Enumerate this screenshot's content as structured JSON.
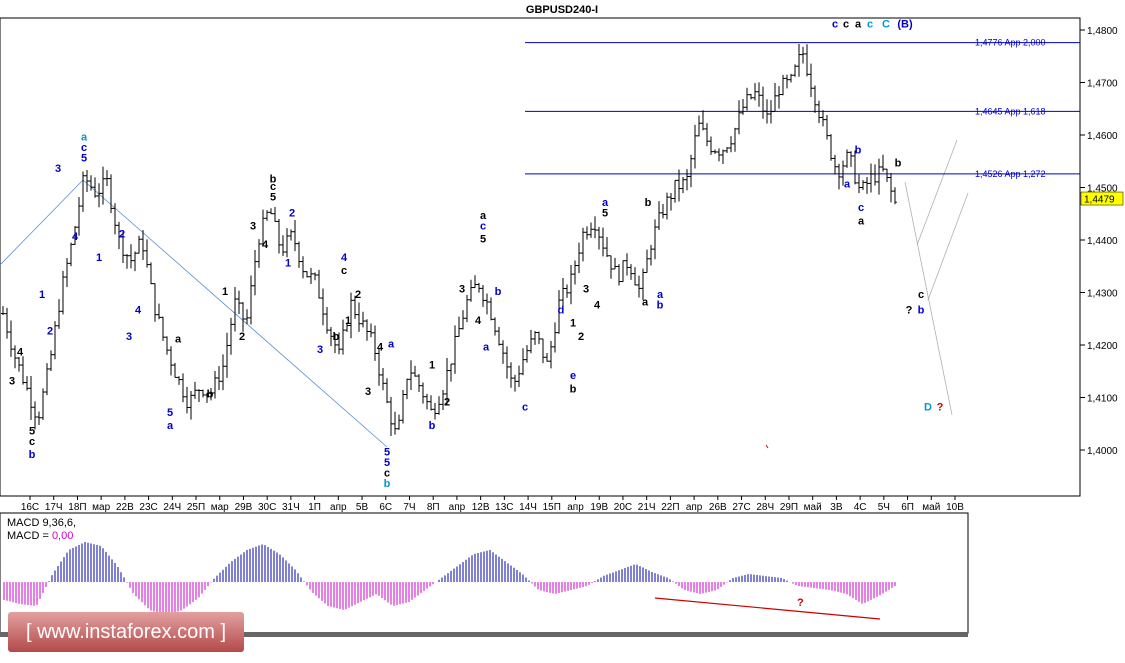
{
  "chart_data": {
    "type": "ohlc",
    "title": "GBPUSD240-I",
    "y_range": [
      1.393,
      1.482
    ],
    "y_ticks": [
      "1,4800",
      "1,4700",
      "1,4600",
      "1,4500",
      "1,4400",
      "1,4300",
      "1,4200",
      "1,4100",
      "1,4000"
    ],
    "y_tick_values": [
      1.48,
      1.47,
      1.46,
      1.45,
      1.44,
      1.43,
      1.42,
      1.41,
      1.4
    ],
    "current_price_label": "1,4479",
    "current_price": 1.4479,
    "x_labels": [
      "16С",
      "17Ч",
      "18П",
      "мар",
      "22В",
      "23С",
      "24Ч",
      "25П",
      "мар",
      "29В",
      "30С",
      "31Ч",
      "1П",
      "апр",
      "5В",
      "6С",
      "7Ч",
      "8П",
      "апр",
      "12В",
      "13С",
      "14Ч",
      "15П",
      "апр",
      "19В",
      "20С",
      "21Ч",
      "22П",
      "апр",
      "26В",
      "27С",
      "28Ч",
      "29П",
      "май",
      "3В",
      "4С",
      "5Ч",
      "6П",
      "май",
      "10В"
    ],
    "levels": [
      {
        "price": 1.4776,
        "label": "1,4776 App 2,000"
      },
      {
        "price": 1.4645,
        "label": "1,4645 App 1,618"
      },
      {
        "price": 1.4526,
        "label": "1,4526 App 1,272"
      }
    ],
    "price_path": [
      1.426,
      1.418,
      1.412,
      1.406,
      1.416,
      1.43,
      1.44,
      1.452,
      1.449,
      1.451,
      1.44,
      1.436,
      1.44,
      1.428,
      1.42,
      1.414,
      1.409,
      1.412,
      1.411,
      1.416,
      1.428,
      1.424,
      1.44,
      1.446,
      1.438,
      1.441,
      1.434,
      1.432,
      1.424,
      1.418,
      1.428,
      1.424,
      1.42,
      1.41,
      1.402,
      1.416,
      1.412,
      1.407,
      1.412,
      1.42,
      1.428,
      1.432,
      1.427,
      1.42,
      1.412,
      1.418,
      1.422,
      1.416,
      1.428,
      1.432,
      1.441,
      1.444,
      1.438,
      1.433,
      1.436,
      1.43,
      1.44,
      1.446,
      1.45,
      1.451,
      1.462,
      1.458,
      1.457,
      1.46,
      1.466,
      1.468,
      1.463,
      1.469,
      1.47,
      1.476,
      1.468,
      1.46,
      1.453,
      1.456,
      1.449,
      1.452,
      1.453,
      1.447
    ],
    "macd_label": "MACD 9,36,6,",
    "macd_value_prefix": "MACD = ",
    "macd_value": "0,00",
    "macd_values": [
      -0.45,
      -0.55,
      -0.6,
      0.2,
      0.8,
      1.0,
      0.9,
      0.4,
      -0.3,
      -0.7,
      -0.85,
      -0.7,
      -0.4,
      0.1,
      0.5,
      0.8,
      0.95,
      0.7,
      0.3,
      -0.25,
      -0.6,
      -0.7,
      -0.5,
      -0.3,
      -0.6,
      -0.5,
      -0.2,
      0.1,
      0.4,
      0.7,
      0.8,
      0.5,
      0.2,
      -0.2,
      -0.3,
      -0.2,
      -0.1,
      0.15,
      0.3,
      0.45,
      0.25,
      0.1,
      -0.2,
      -0.3,
      -0.2,
      0.1,
      0.2,
      0.15,
      0.1,
      -0.1,
      -0.15,
      -0.2,
      -0.3,
      -0.55,
      -0.35,
      -0.1
    ],
    "wave_labels": [
      {
        "t": "3",
        "x": 12,
        "p": 1.4125,
        "c": "#000000"
      },
      {
        "t": "4",
        "x": 20,
        "p": 1.418,
        "c": "#000000"
      },
      {
        "t": "5",
        "x": 32,
        "p": 1.403,
        "c": "#000000"
      },
      {
        "t": "c",
        "x": 32,
        "p": 1.401,
        "c": "#000000"
      },
      {
        "t": "b",
        "x": 32,
        "p": 1.3985,
        "c": "#0000cc"
      },
      {
        "t": "1",
        "x": 42,
        "p": 1.429,
        "c": "#0000cc"
      },
      {
        "t": "2",
        "x": 50,
        "p": 1.422,
        "c": "#0000cc"
      },
      {
        "t": "3",
        "x": 58,
        "p": 1.453,
        "c": "#0000cc"
      },
      {
        "t": "4",
        "x": 75,
        "p": 1.44,
        "c": "#0000cc"
      },
      {
        "t": "a",
        "x": 84,
        "p": 1.459,
        "c": "#0099cc"
      },
      {
        "t": "c",
        "x": 84,
        "p": 1.457,
        "c": "#0000cc"
      },
      {
        "t": "5",
        "x": 84,
        "p": 1.455,
        "c": "#0000cc"
      },
      {
        "t": "1",
        "x": 99,
        "p": 1.436,
        "c": "#0000cc"
      },
      {
        "t": "2",
        "x": 122,
        "p": 1.4405,
        "c": "#0000cc"
      },
      {
        "t": "3",
        "x": 129,
        "p": 1.421,
        "c": "#0000cc"
      },
      {
        "t": "4",
        "x": 138,
        "p": 1.426,
        "c": "#0000cc"
      },
      {
        "t": "a",
        "x": 178,
        "p": 1.4205,
        "c": "#000000"
      },
      {
        "t": "b",
        "x": 210,
        "p": 1.41,
        "c": "#000000"
      },
      {
        "t": "5",
        "x": 170,
        "p": 1.4065,
        "c": "#0000cc"
      },
      {
        "t": "a",
        "x": 170,
        "p": 1.404,
        "c": "#0000cc"
      },
      {
        "t": "1",
        "x": 225,
        "p": 1.4295,
        "c": "#000000"
      },
      {
        "t": "2",
        "x": 242,
        "p": 1.421,
        "c": "#000000"
      },
      {
        "t": "3",
        "x": 253,
        "p": 1.442,
        "c": "#000000"
      },
      {
        "t": "4",
        "x": 265,
        "p": 1.4385,
        "c": "#000000"
      },
      {
        "t": "b",
        "x": 273,
        "p": 1.451,
        "c": "#000000"
      },
      {
        "t": "c",
        "x": 273,
        "p": 1.4495,
        "c": "#000000"
      },
      {
        "t": "5",
        "x": 273,
        "p": 1.4475,
        "c": "#000000"
      },
      {
        "t": "2",
        "x": 292,
        "p": 1.4445,
        "c": "#0000cc"
      },
      {
        "t": "1",
        "x": 288,
        "p": 1.435,
        "c": "#0000cc"
      },
      {
        "t": "4",
        "x": 344,
        "p": 1.436,
        "c": "#0000cc"
      },
      {
        "t": "c",
        "x": 344,
        "p": 1.4335,
        "c": "#000000"
      },
      {
        "t": "3",
        "x": 320,
        "p": 1.4185,
        "c": "#0000cc"
      },
      {
        "t": "b",
        "x": 336,
        "p": 1.421,
        "c": "#000000"
      },
      {
        "t": "1",
        "x": 348,
        "p": 1.424,
        "c": "#000000"
      },
      {
        "t": "2",
        "x": 358,
        "p": 1.429,
        "c": "#000000"
      },
      {
        "t": "3",
        "x": 368,
        "p": 1.4105,
        "c": "#000000"
      },
      {
        "t": "4",
        "x": 380,
        "p": 1.419,
        "c": "#000000"
      },
      {
        "t": "a",
        "x": 391,
        "p": 1.4195,
        "c": "#0000cc"
      },
      {
        "t": "5",
        "x": 387,
        "p": 1.399,
        "c": "#0000cc"
      },
      {
        "t": "5",
        "x": 387,
        "p": 1.397,
        "c": "#0000cc"
      },
      {
        "t": "c",
        "x": 387,
        "p": 1.395,
        "c": "#000000"
      },
      {
        "t": "b",
        "x": 387,
        "p": 1.393,
        "c": "#0099cc"
      },
      {
        "t": "1",
        "x": 432,
        "p": 1.4155,
        "c": "#000000"
      },
      {
        "t": "2",
        "x": 447,
        "p": 1.4085,
        "c": "#000000"
      },
      {
        "t": "b",
        "x": 432,
        "p": 1.404,
        "c": "#0000cc"
      },
      {
        "t": "3",
        "x": 462,
        "p": 1.43,
        "c": "#000000"
      },
      {
        "t": "4",
        "x": 478,
        "p": 1.424,
        "c": "#000000"
      },
      {
        "t": "a",
        "x": 486,
        "p": 1.419,
        "c": "#0000cc"
      },
      {
        "t": "b",
        "x": 498,
        "p": 1.4295,
        "c": "#0000cc"
      },
      {
        "t": "a",
        "x": 483,
        "p": 1.444,
        "c": "#000000"
      },
      {
        "t": "c",
        "x": 483,
        "p": 1.442,
        "c": "#0000cc"
      },
      {
        "t": "5",
        "x": 483,
        "p": 1.4395,
        "c": "#000000"
      },
      {
        "t": "c",
        "x": 525,
        "p": 1.4075,
        "c": "#0000cc"
      },
      {
        "t": "d",
        "x": 561,
        "p": 1.426,
        "c": "#0000cc"
      },
      {
        "t": "1",
        "x": 573,
        "p": 1.4235,
        "c": "#000000"
      },
      {
        "t": "2",
        "x": 581,
        "p": 1.421,
        "c": "#000000"
      },
      {
        "t": "e",
        "x": 573,
        "p": 1.4135,
        "c": "#0000cc"
      },
      {
        "t": "b",
        "x": 573,
        "p": 1.411,
        "c": "#000000"
      },
      {
        "t": "3",
        "x": 586,
        "p": 1.43,
        "c": "#000000"
      },
      {
        "t": "4",
        "x": 597,
        "p": 1.427,
        "c": "#000000"
      },
      {
        "t": "a",
        "x": 605,
        "p": 1.4465,
        "c": "#0000cc"
      },
      {
        "t": "5",
        "x": 605,
        "p": 1.4445,
        "c": "#000000"
      },
      {
        "t": "b",
        "x": 648,
        "p": 1.4465,
        "c": "#000000"
      },
      {
        "t": "a",
        "x": 645,
        "p": 1.4275,
        "c": "#000000"
      },
      {
        "t": "a",
        "x": 660,
        "p": 1.429,
        "c": "#0000cc"
      },
      {
        "t": "b",
        "x": 660,
        "p": 1.427,
        "c": "#0000cc"
      },
      {
        "t": "c",
        "x": 835,
        "p": 1.4805,
        "c": "#0000cc"
      },
      {
        "t": "c",
        "x": 846,
        "p": 1.4805,
        "c": "#000000"
      },
      {
        "t": "a",
        "x": 858,
        "p": 1.4805,
        "c": "#000000"
      },
      {
        "t": "c",
        "x": 870,
        "p": 1.4805,
        "c": "#0099cc"
      },
      {
        "t": "C",
        "x": 886,
        "p": 1.4805,
        "c": "#0099cc"
      },
      {
        "t": "(B)",
        "x": 905,
        "p": 1.4805,
        "c": "#0000cc"
      },
      {
        "t": "b",
        "x": 858,
        "p": 1.4565,
        "c": "#0000cc"
      },
      {
        "t": "a",
        "x": 847,
        "p": 1.45,
        "c": "#0000cc"
      },
      {
        "t": "c",
        "x": 861,
        "p": 1.4455,
        "c": "#0000cc"
      },
      {
        "t": "a",
        "x": 861,
        "p": 1.443,
        "c": "#000000"
      },
      {
        "t": "b",
        "x": 898,
        "p": 1.454,
        "c": "#000000"
      },
      {
        "t": "c",
        "x": 921,
        "p": 1.429,
        "c": "#000000"
      },
      {
        "t": "?",
        "x": 909,
        "p": 1.426,
        "c": "#000000"
      },
      {
        "t": "b",
        "x": 921,
        "p": 1.426,
        "c": "#0000cc"
      },
      {
        "t": "D",
        "x": 928,
        "p": 1.4075,
        "c": "#0099cc"
      },
      {
        "t": "?",
        "x": 940,
        "p": 1.4075,
        "c": "#cc0000"
      }
    ]
  },
  "watermark": "[ www.instaforex.com ]"
}
